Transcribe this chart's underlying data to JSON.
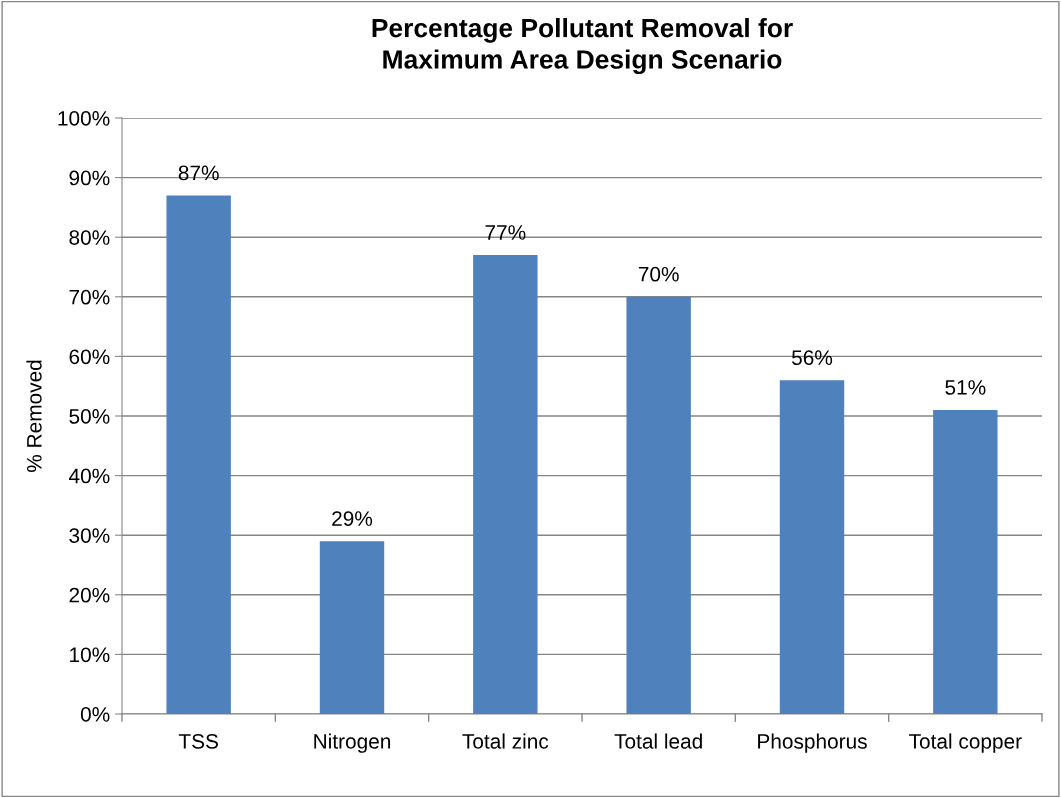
{
  "chart_data": {
    "type": "bar",
    "title": "Percentage Pollutant Removal for\nMaximum Area Design Scenario",
    "ylabel": "% Removed",
    "categories": [
      "TSS",
      "Nitrogen",
      "Total zinc",
      "Total lead",
      "Phosphorus",
      "Total copper"
    ],
    "values": [
      87,
      29,
      77,
      70,
      56,
      51
    ],
    "value_labels": [
      "87%",
      "29%",
      "77%",
      "70%",
      "56%",
      "51%"
    ],
    "color": "#4f81bd",
    "ylim": [
      0,
      100
    ],
    "yticks": [
      {
        "value": 0,
        "label": "0%"
      },
      {
        "value": 10,
        "label": "10%"
      },
      {
        "value": 20,
        "label": "20%"
      },
      {
        "value": 30,
        "label": "30%"
      },
      {
        "value": 40,
        "label": "40%"
      },
      {
        "value": 50,
        "label": "50%"
      },
      {
        "value": 60,
        "label": "60%"
      },
      {
        "value": 70,
        "label": "70%"
      },
      {
        "value": 80,
        "label": "80%"
      },
      {
        "value": 90,
        "label": "90%"
      },
      {
        "value": 100,
        "label": "100%"
      }
    ],
    "grid": "y",
    "legend": false
  }
}
